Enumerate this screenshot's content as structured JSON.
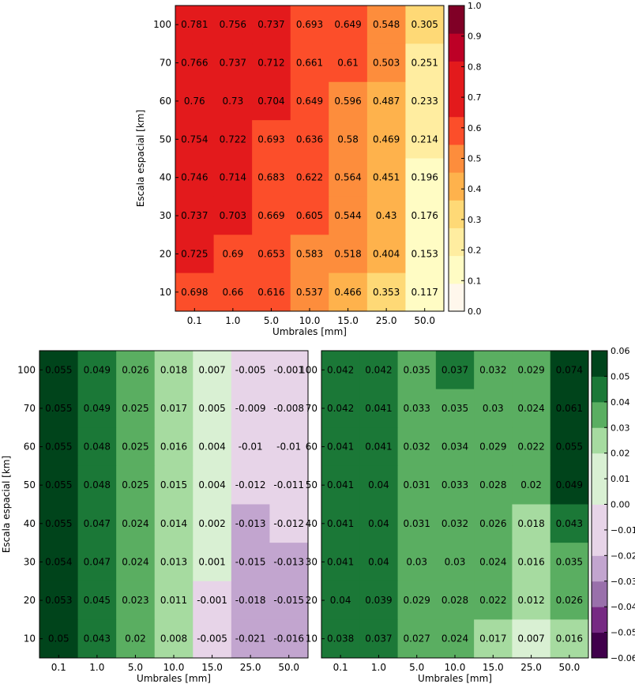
{
  "chart_data": [
    {
      "type": "heatmap",
      "xlabel": "Umbrales [mm]",
      "ylabel": "Escala espacial [km]",
      "x_categories": [
        "0.1",
        "1.0",
        "5.0",
        "10.0",
        "15.0",
        "25.0",
        "50.0"
      ],
      "y_categories": [
        "100",
        "70",
        "60",
        "50",
        "40",
        "30",
        "20",
        "10"
      ],
      "values": [
        [
          "0.781",
          "0.756",
          "0.737",
          "0.693",
          "0.649",
          "0.548",
          "0.305"
        ],
        [
          "0.766",
          "0.737",
          "0.712",
          "0.661",
          "0.61",
          "0.503",
          "0.251"
        ],
        [
          "0.76",
          "0.73",
          "0.704",
          "0.649",
          "0.596",
          "0.487",
          "0.233"
        ],
        [
          "0.754",
          "0.722",
          "0.693",
          "0.636",
          "0.58",
          "0.469",
          "0.214"
        ],
        [
          "0.746",
          "0.714",
          "0.683",
          "0.622",
          "0.564",
          "0.451",
          "0.196"
        ],
        [
          "0.737",
          "0.703",
          "0.669",
          "0.605",
          "0.544",
          "0.43",
          "0.176"
        ],
        [
          "0.725",
          "0.69",
          "0.653",
          "0.583",
          "0.518",
          "0.404",
          "0.153"
        ],
        [
          "0.698",
          "0.66",
          "0.616",
          "0.537",
          "0.466",
          "0.353",
          "0.117"
        ]
      ],
      "colorbar": {
        "ticks": [
          "0.0",
          "0.1",
          "0.2",
          "0.3",
          "0.4",
          "0.5",
          "0.6",
          "0.7",
          "0.8",
          "0.9",
          "1.0"
        ],
        "range": [
          0,
          1
        ],
        "colors": [
          "#fff7ec",
          "#fffcc4",
          "#ffeda0",
          "#fed976",
          "#feb24c",
          "#fd8d3c",
          "#fc4e2a",
          "#e31a1c",
          "#e31a1c",
          "#bd0026",
          "#800026"
        ]
      }
    },
    {
      "type": "heatmap",
      "xlabel": "Umbrales [mm]",
      "ylabel": "Escala espacial [km]",
      "x_categories": [
        "0.1",
        "1.0",
        "5.0",
        "10.0",
        "15.0",
        "25.0",
        "50.0"
      ],
      "y_categories": [
        "100",
        "70",
        "60",
        "50",
        "40",
        "30",
        "20",
        "10"
      ],
      "values": [
        [
          "0.055",
          "0.049",
          "0.026",
          "0.018",
          "0.007",
          "-0.005",
          "-0.001"
        ],
        [
          "0.055",
          "0.049",
          "0.025",
          "0.017",
          "0.005",
          "-0.009",
          "-0.008"
        ],
        [
          "0.055",
          "0.048",
          "0.025",
          "0.016",
          "0.004",
          "-0.01",
          "-0.01"
        ],
        [
          "0.055",
          "0.048",
          "0.025",
          "0.015",
          "0.004",
          "-0.012",
          "-0.011"
        ],
        [
          "0.055",
          "0.047",
          "0.024",
          "0.014",
          "0.002",
          "-0.013",
          "-0.012"
        ],
        [
          "0.054",
          "0.047",
          "0.024",
          "0.013",
          "0.001",
          "-0.015",
          "-0.013"
        ],
        [
          "0.053",
          "0.045",
          "0.023",
          "0.011",
          "-0.001",
          "-0.018",
          "-0.015"
        ],
        [
          "0.05",
          "0.043",
          "0.02",
          "0.008",
          "-0.005",
          "-0.021",
          "-0.016"
        ]
      ]
    },
    {
      "type": "heatmap",
      "xlabel": "Umbrales [mm]",
      "ylabel": "",
      "x_categories": [
        "0.1",
        "1.0",
        "5.0",
        "10.0",
        "15.0",
        "25.0",
        "50.0"
      ],
      "y_categories": [
        "100",
        "70",
        "60",
        "50",
        "40",
        "30",
        "20",
        "10"
      ],
      "values": [
        [
          "0.042",
          "0.042",
          "0.035",
          "0.037",
          "0.032",
          "0.029",
          "0.074"
        ],
        [
          "0.042",
          "0.041",
          "0.033",
          "0.035",
          "0.03",
          "0.024",
          "0.061"
        ],
        [
          "0.041",
          "0.041",
          "0.032",
          "0.034",
          "0.029",
          "0.022",
          "0.055"
        ],
        [
          "0.041",
          "0.04",
          "0.031",
          "0.033",
          "0.028",
          "0.02",
          "0.049"
        ],
        [
          "0.041",
          "0.04",
          "0.031",
          "0.032",
          "0.026",
          "0.018",
          "0.043"
        ],
        [
          "0.041",
          "0.04",
          "0.03",
          "0.03",
          "0.024",
          "0.016",
          "0.035"
        ],
        [
          "0.04",
          "0.039",
          "0.029",
          "0.028",
          "0.022",
          "0.012",
          "0.026"
        ],
        [
          "0.038",
          "0.037",
          "0.027",
          "0.024",
          "0.017",
          "0.007",
          "0.016"
        ]
      ],
      "colorbar": {
        "ticks": [
          "0.06",
          "0.05",
          "0.04",
          "0.03",
          "0.02",
          "0.01",
          "0.00",
          "-0.01",
          "-0.02",
          "-0.03",
          "-0.04",
          "-0.05",
          "-0.06"
        ],
        "range": [
          -0.06,
          0.06
        ],
        "colors": [
          "#40004b",
          "#762a83",
          "#9970ab",
          "#c2a5cf",
          "#e7d4e8",
          "#e7d4e8",
          "#d9f0d3",
          "#d9f0d3",
          "#a6dba0",
          "#5aae61",
          "#1b7837",
          "#00441b"
        ]
      }
    }
  ]
}
